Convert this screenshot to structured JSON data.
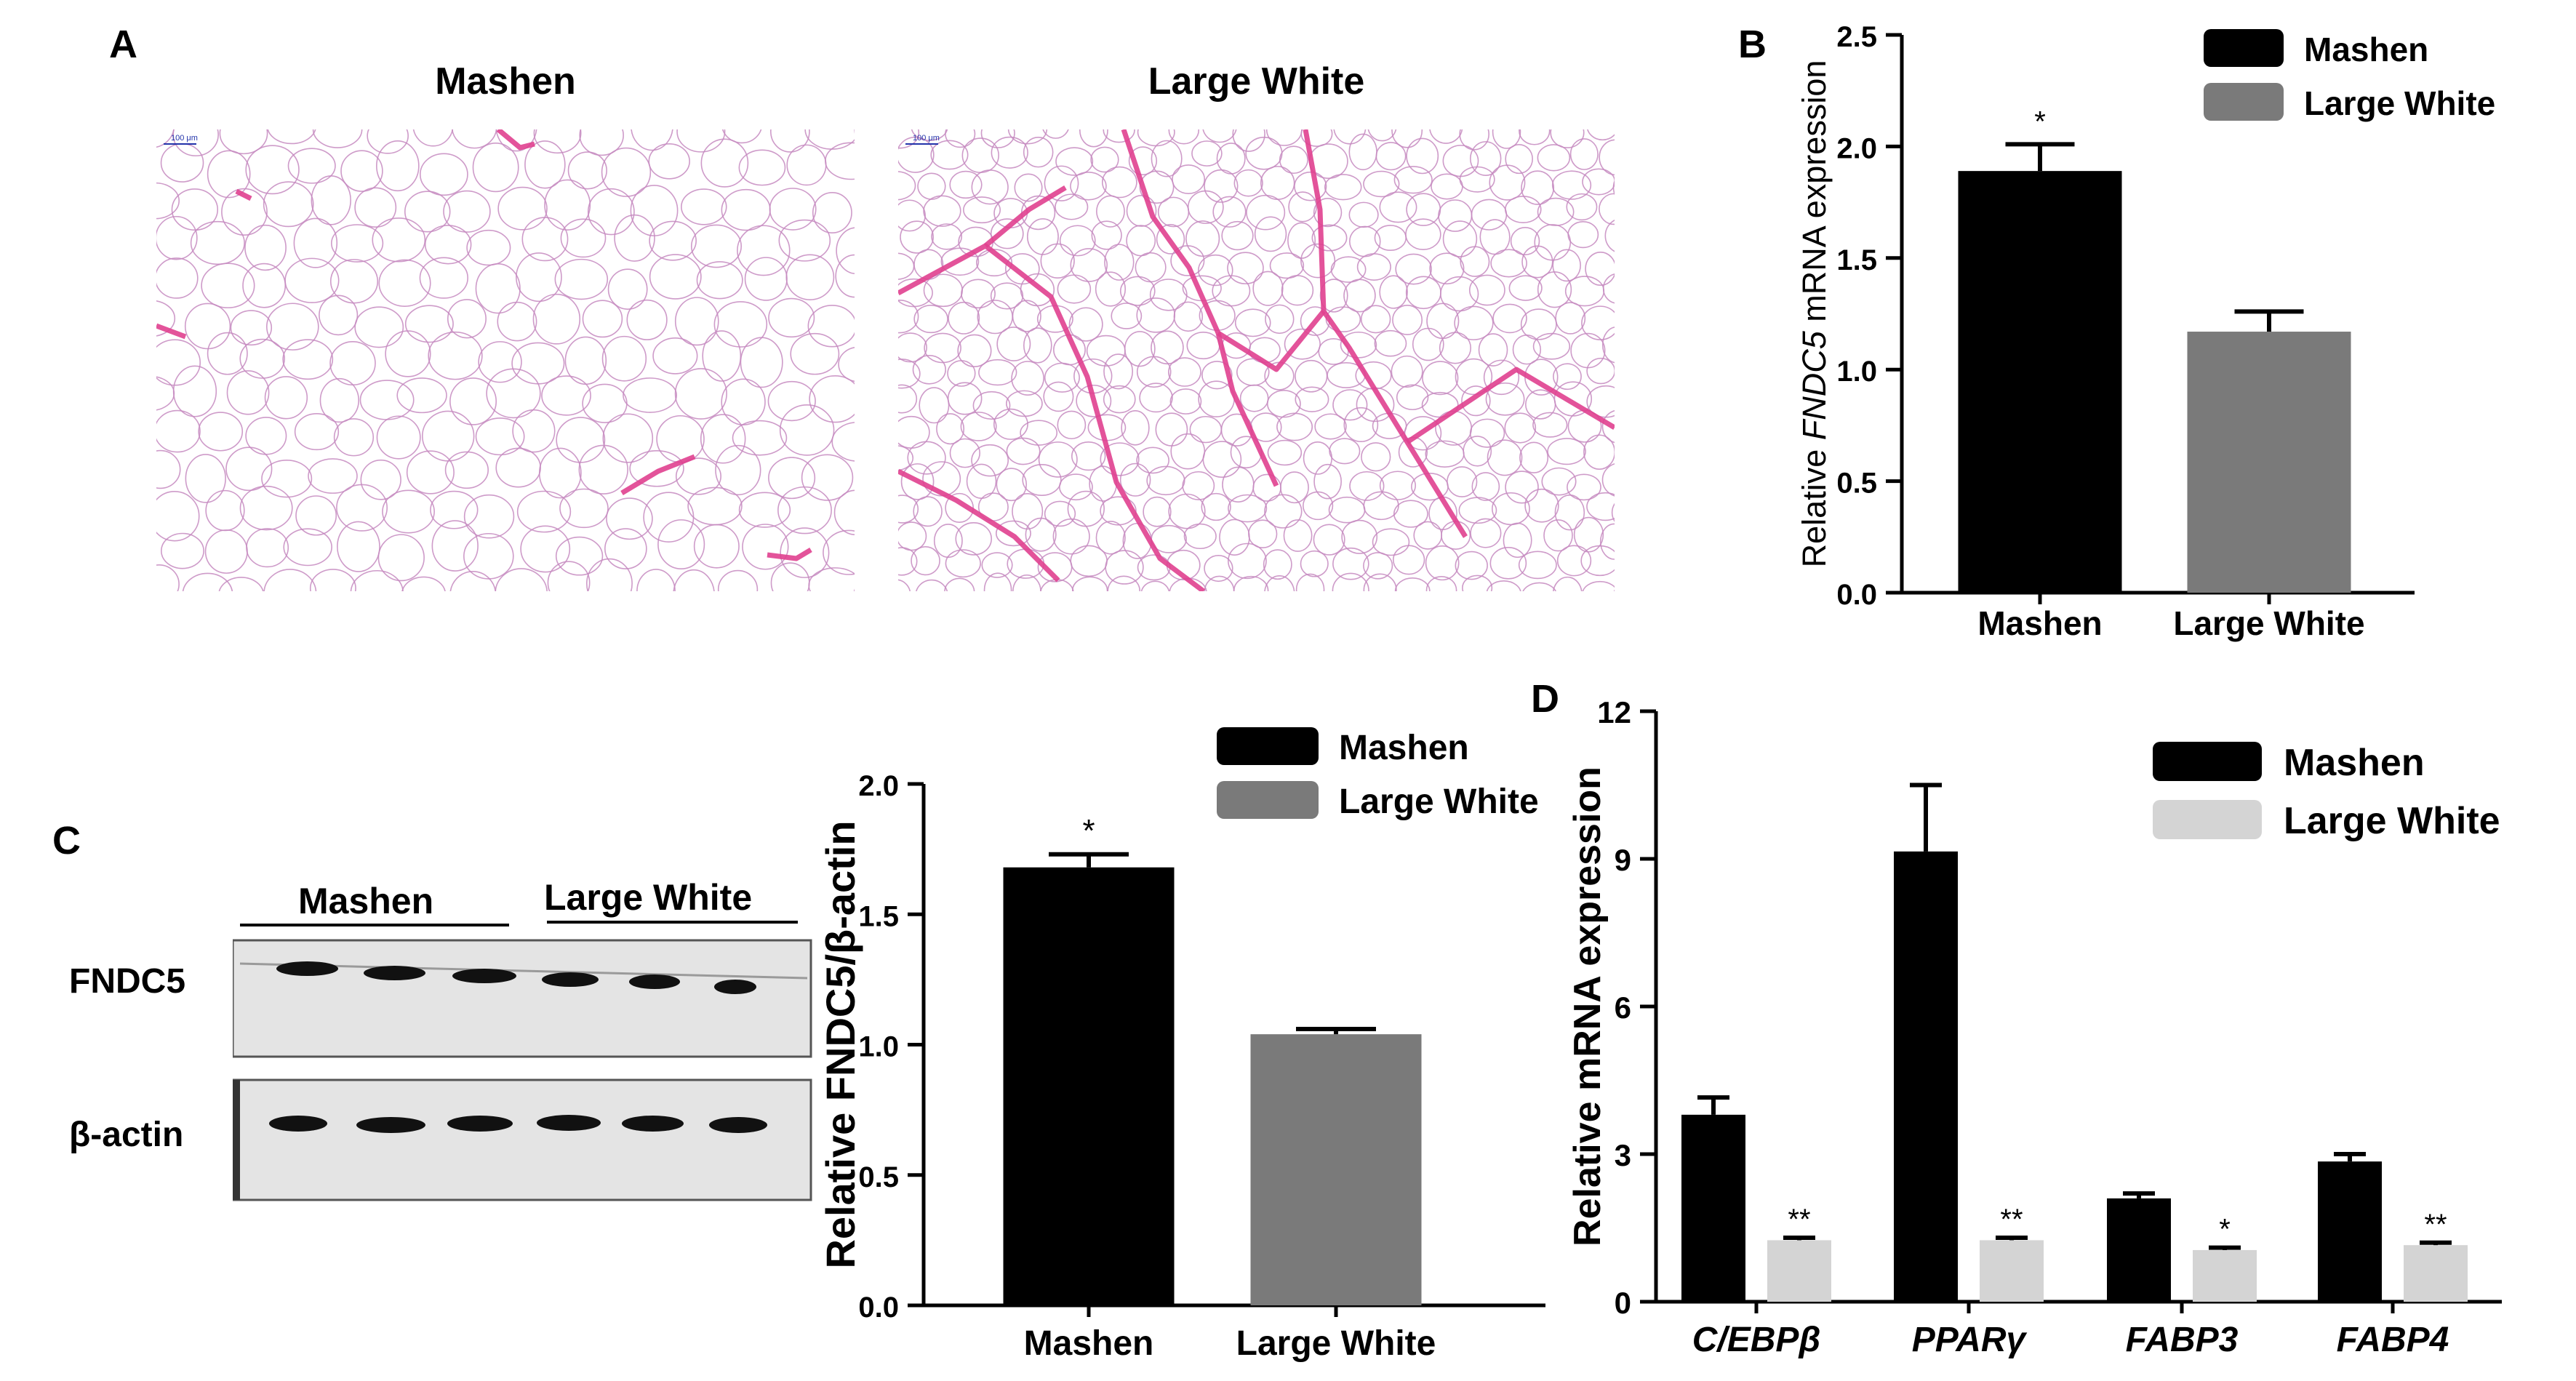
{
  "panels": {
    "A": {
      "letter": "A",
      "images": [
        {
          "title": "Mashen",
          "scale_bar_label": "100 μm"
        },
        {
          "title": "Large White",
          "scale_bar_label": "100 μm"
        }
      ]
    },
    "B": {
      "letter": "B"
    },
    "C": {
      "letter": "C",
      "blot": {
        "groups": [
          "Mashen",
          "Large White"
        ],
        "rows": [
          "FNDC5",
          "β-actin"
        ]
      }
    },
    "D": {
      "letter": "D"
    }
  },
  "colors": {
    "mashen": "#000000",
    "large_white_gray": "#7a7a7a",
    "large_white_light": "#d4d4d4",
    "stain_pink": "#e0408f"
  },
  "chart_data": [
    {
      "id": "B",
      "type": "bar",
      "categories": [
        "Mashen",
        "Large White"
      ],
      "values": [
        1.89,
        1.17
      ],
      "errors": [
        0.12,
        0.09
      ],
      "significance": [
        "*",
        ""
      ],
      "bar_colors": [
        "#000000",
        "#7a7a7a"
      ],
      "ylabel_parts": [
        {
          "text": "Relative ",
          "italic": false
        },
        {
          "text": "FNDC5",
          "italic": true
        },
        {
          "text": " mRNA expression",
          "italic": false
        }
      ],
      "ylim": [
        0,
        2.5
      ],
      "yticks": [
        "0.0",
        "0.5",
        "1.0",
        "1.5",
        "2.0",
        "2.5"
      ],
      "legend": [
        {
          "label": "Mashen",
          "color": "#000000"
        },
        {
          "label": "Large White",
          "color": "#7a7a7a"
        }
      ],
      "legend_position": "top-right"
    },
    {
      "id": "C",
      "type": "bar",
      "categories": [
        "Mashen",
        "Large White"
      ],
      "values": [
        1.68,
        1.04
      ],
      "errors": [
        0.05,
        0.02
      ],
      "significance": [
        "*",
        ""
      ],
      "bar_colors": [
        "#000000",
        "#7a7a7a"
      ],
      "ylabel_parts": [
        {
          "text": "Relative FNDC5/β-actin",
          "italic": false
        }
      ],
      "ylim": [
        0,
        2.0
      ],
      "yticks": [
        "0.0",
        "0.5",
        "1.0",
        "1.5",
        "2.0"
      ],
      "legend": [
        {
          "label": "Mashen",
          "color": "#000000"
        },
        {
          "label": "Large White",
          "color": "#7a7a7a"
        }
      ],
      "legend_position": "top-right"
    },
    {
      "id": "D",
      "type": "bar",
      "categories": [
        "C/EBPβ",
        "PPARγ",
        "FABP3",
        "FABP4"
      ],
      "series": [
        {
          "name": "Mashen",
          "color": "#000000",
          "values": [
            3.8,
            9.15,
            2.1,
            2.85
          ],
          "errors": [
            0.35,
            1.35,
            0.1,
            0.15
          ],
          "significance": [
            "",
            "",
            "",
            ""
          ]
        },
        {
          "name": "Large White",
          "color": "#d4d4d4",
          "values": [
            1.25,
            1.25,
            1.05,
            1.15
          ],
          "errors": [
            0.05,
            0.05,
            0.05,
            0.05
          ],
          "significance": [
            "**",
            "**",
            "*",
            "**"
          ]
        }
      ],
      "ylabel_parts": [
        {
          "text": "Relative mRNA expression",
          "italic": false
        }
      ],
      "ylim": [
        0,
        12
      ],
      "yticks": [
        "0",
        "3",
        "6",
        "9",
        "12"
      ],
      "legend_position": "top-right"
    }
  ]
}
